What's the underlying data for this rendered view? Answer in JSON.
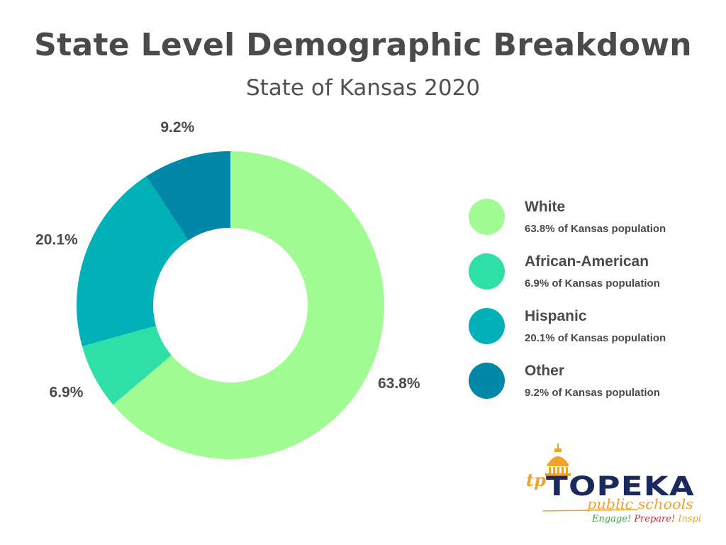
{
  "header": {
    "title": "State Level Demographic Breakdown",
    "subtitle": "State of Kansas 2020"
  },
  "chart_data": {
    "type": "pie",
    "style": "donut",
    "title": "State Level Demographic Breakdown",
    "subtitle": "State of Kansas 2020",
    "categories": [
      "White",
      "African-American",
      "Hispanic",
      "Other"
    ],
    "values": [
      63.8,
      6.9,
      20.1,
      9.2
    ],
    "labels": [
      "63.8%",
      "6.9%",
      "20.1%",
      "9.2%"
    ],
    "colors": [
      "#a0fc92",
      "#2edfa7",
      "#00b2b8",
      "#0188a8"
    ],
    "legend_placement": "right"
  },
  "legend": {
    "items": [
      {
        "name": "White",
        "desc": "63.8% of Kansas population"
      },
      {
        "name": "African-American",
        "desc": "6.9% of Kansas population"
      },
      {
        "name": "Hispanic",
        "desc": "20.1% of Kansas population"
      },
      {
        "name": "Other",
        "desc": "9.2% of Kansas population"
      }
    ]
  },
  "logo": {
    "wordmark": "TOPEKA",
    "script": "public schools",
    "tagline_parts": [
      "Engage!",
      "Prepare!",
      "Inspire!"
    ],
    "tagline_colors": [
      "#37a341",
      "#d62b2b",
      "#f0a32c"
    ],
    "brand_colors": {
      "navy": "#1b2a5e",
      "orange": "#f0a32c"
    }
  }
}
